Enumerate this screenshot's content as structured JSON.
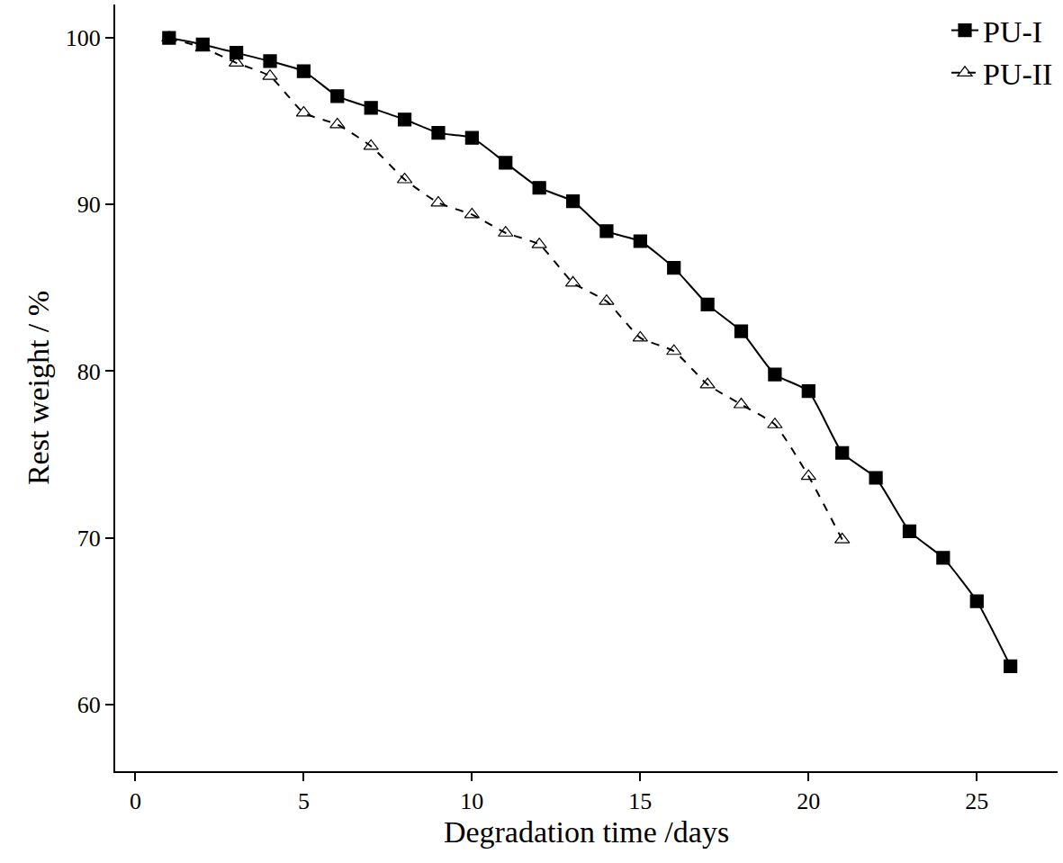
{
  "chart_data": {
    "type": "line",
    "x_label": "Degradation time /days",
    "y_label": "Rest weight / %",
    "xlim": [
      -0.6,
      27.4
    ],
    "xticks": [
      0,
      5,
      10,
      15,
      20,
      25
    ],
    "ylim": [
      56,
      102
    ],
    "yticks": [
      60,
      70,
      80,
      90,
      100
    ],
    "grid": false,
    "legend": "top right",
    "series": [
      {
        "name": "PU-I",
        "color": "#000000",
        "marker": "square",
        "line_style": "solid",
        "x": [
          1,
          2,
          3,
          4,
          5,
          6,
          7,
          8,
          9,
          10,
          11,
          12,
          13,
          14,
          15,
          16,
          17,
          18,
          19,
          20,
          21,
          22,
          23,
          24,
          25,
          26
        ],
        "values": [
          100,
          99.6,
          99.1,
          98.6,
          98.0,
          96.5,
          95.8,
          95.1,
          94.3,
          94.0,
          92.5,
          91.0,
          90.2,
          88.4,
          87.8,
          86.2,
          84.0,
          82.4,
          79.8,
          78.8,
          75.1,
          73.6,
          70.4,
          68.8,
          66.2,
          62.3
        ]
      },
      {
        "name": "PU-II",
        "color": "#000000",
        "marker": "triangle-up-open",
        "line_style": "dash",
        "x": [
          1,
          2,
          3,
          4,
          5,
          6,
          7,
          8,
          9,
          10,
          11,
          12,
          13,
          14,
          15,
          16,
          17,
          18,
          19,
          20,
          21
        ],
        "values": [
          100,
          99.4,
          98.5,
          97.7,
          95.5,
          94.8,
          93.5,
          91.5,
          90.1,
          89.4,
          88.3,
          87.6,
          85.3,
          84.2,
          82.0,
          81.2,
          79.2,
          78.0,
          76.8,
          73.7,
          69.9
        ]
      }
    ]
  }
}
